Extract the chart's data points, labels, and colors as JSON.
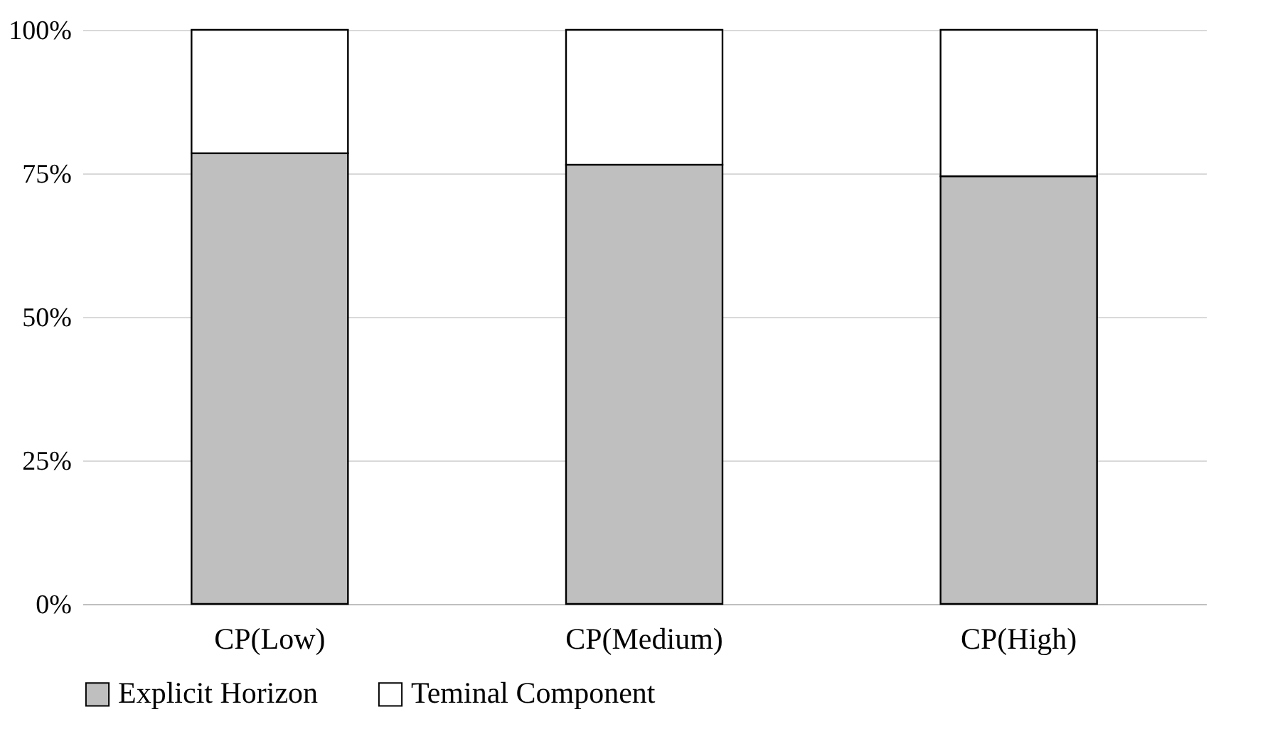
{
  "chart_data": {
    "type": "bar",
    "stacked": true,
    "categories": [
      "CP(Low)",
      "CP(Medium)",
      "CP(High)"
    ],
    "series": [
      {
        "name": "Explicit Horizon",
        "color": "#bfbfbf",
        "values": [
          78.5,
          76.5,
          74.5
        ]
      },
      {
        "name": "Teminal Component",
        "color": "#ffffff",
        "values": [
          21.5,
          23.5,
          25.5
        ]
      }
    ],
    "ylim": [
      0,
      100
    ],
    "yticks": [
      {
        "value": 0,
        "label": "0%"
      },
      {
        "value": 25,
        "label": "25%"
      },
      {
        "value": 50,
        "label": "50%"
      },
      {
        "value": 75,
        "label": "75%"
      },
      {
        "value": 100,
        "label": "100%"
      }
    ],
    "grid": "y",
    "legend": "bottom"
  }
}
